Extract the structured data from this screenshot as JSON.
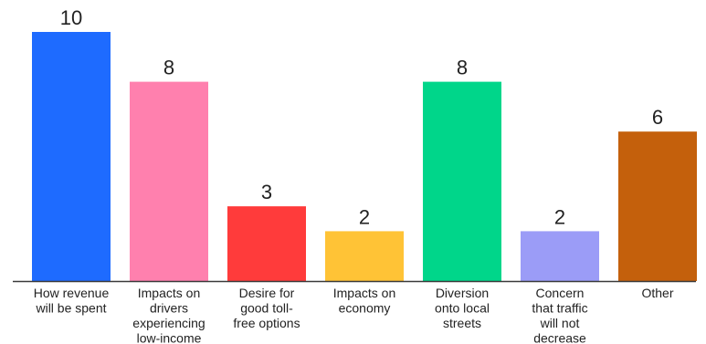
{
  "chart_data": {
    "type": "bar",
    "categories": [
      [
        "How revenue",
        "will be spent"
      ],
      [
        "Impacts on",
        "drivers",
        "experiencing",
        "low-income"
      ],
      [
        "Desire for",
        "good toll-",
        "free options"
      ],
      [
        "Impacts on",
        "economy"
      ],
      [
        "Diversion",
        "onto local",
        "streets"
      ],
      [
        "Concern",
        "that traffic",
        "will not",
        "decrease"
      ],
      [
        "Other"
      ]
    ],
    "values": [
      10,
      8,
      3,
      2,
      8,
      2,
      6
    ],
    "value_labels": [
      "10",
      "8",
      "3",
      "2",
      "8",
      "2",
      "6"
    ],
    "colors": [
      "#1e6bff",
      "#ff80ae",
      "#ff3b3b",
      "#ffc336",
      "#00d68a",
      "#9b9cf7",
      "#c4600c"
    ],
    "ylim": [
      0,
      10
    ],
    "grid": false,
    "baseline_color": "#3a3a3a"
  }
}
